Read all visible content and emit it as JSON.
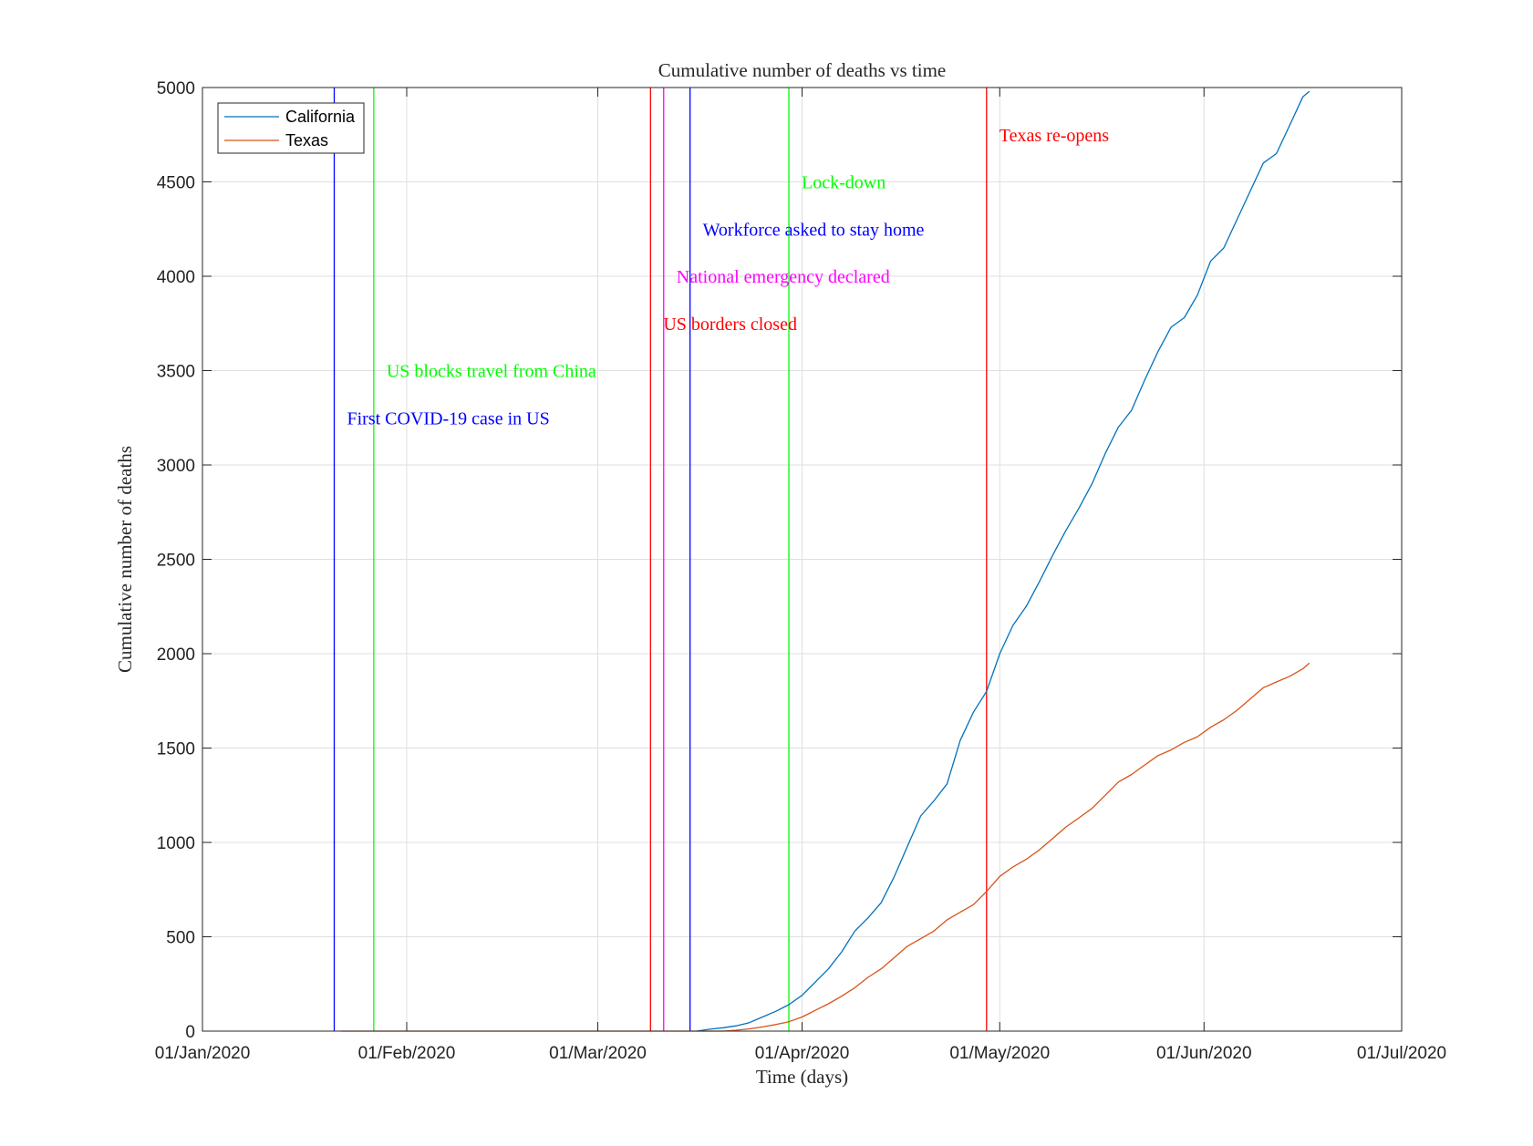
{
  "chart_data": {
    "type": "line",
    "title": "Cumulative number of deaths vs time",
    "xlabel": "Time (days)",
    "ylabel": "Cumulative number of deaths",
    "xlim": [
      "2020-01-01",
      "2020-07-01"
    ],
    "ylim": [
      0,
      5000
    ],
    "x_ticks": [
      "01/Jan/2020",
      "01/Feb/2020",
      "01/Mar/2020",
      "01/Apr/2020",
      "01/May/2020",
      "01/Jun/2020",
      "01/Jul/2020"
    ],
    "x_tick_dates": [
      "2020-01-01",
      "2020-02-01",
      "2020-03-01",
      "2020-04-01",
      "2020-05-01",
      "2020-06-01",
      "2020-07-01"
    ],
    "y_ticks": [
      0,
      500,
      1000,
      1500,
      2000,
      2500,
      3000,
      3500,
      4000,
      4500,
      5000
    ],
    "grid": true,
    "legend_position": "top-left",
    "series": [
      {
        "name": "California",
        "color": "#0072BD",
        "points": [
          [
            "2020-03-16",
            0
          ],
          [
            "2020-03-18",
            10
          ],
          [
            "2020-03-20",
            18
          ],
          [
            "2020-03-22",
            28
          ],
          [
            "2020-03-24",
            45
          ],
          [
            "2020-03-26",
            75
          ],
          [
            "2020-03-28",
            105
          ],
          [
            "2020-03-30",
            140
          ],
          [
            "2020-04-01",
            190
          ],
          [
            "2020-04-03",
            260
          ],
          [
            "2020-04-05",
            330
          ],
          [
            "2020-04-07",
            420
          ],
          [
            "2020-04-09",
            530
          ],
          [
            "2020-04-11",
            600
          ],
          [
            "2020-04-13",
            680
          ],
          [
            "2020-04-15",
            820
          ],
          [
            "2020-04-17",
            980
          ],
          [
            "2020-04-19",
            1140
          ],
          [
            "2020-04-21",
            1220
          ],
          [
            "2020-04-23",
            1310
          ],
          [
            "2020-04-25",
            1540
          ],
          [
            "2020-04-27",
            1690
          ],
          [
            "2020-04-29",
            1800
          ],
          [
            "2020-05-01",
            2000
          ],
          [
            "2020-05-03",
            2150
          ],
          [
            "2020-05-05",
            2250
          ],
          [
            "2020-05-07",
            2380
          ],
          [
            "2020-05-09",
            2520
          ],
          [
            "2020-05-11",
            2650
          ],
          [
            "2020-05-13",
            2770
          ],
          [
            "2020-05-15",
            2900
          ],
          [
            "2020-05-17",
            3060
          ],
          [
            "2020-05-19",
            3200
          ],
          [
            "2020-05-21",
            3290
          ],
          [
            "2020-05-23",
            3450
          ],
          [
            "2020-05-25",
            3600
          ],
          [
            "2020-05-27",
            3730
          ],
          [
            "2020-05-29",
            3780
          ],
          [
            "2020-05-31",
            3900
          ],
          [
            "2020-06-02",
            4080
          ],
          [
            "2020-06-04",
            4150
          ],
          [
            "2020-06-06",
            4300
          ],
          [
            "2020-06-08",
            4450
          ],
          [
            "2020-06-10",
            4600
          ],
          [
            "2020-06-12",
            4650
          ],
          [
            "2020-06-14",
            4800
          ],
          [
            "2020-06-16",
            4950
          ],
          [
            "2020-06-17",
            4980
          ]
        ]
      },
      {
        "name": "Texas",
        "color": "#D95319",
        "points": [
          [
            "2020-01-22",
            0
          ],
          [
            "2020-03-20",
            0
          ],
          [
            "2020-03-22",
            5
          ],
          [
            "2020-03-24",
            12
          ],
          [
            "2020-03-26",
            22
          ],
          [
            "2020-03-28",
            35
          ],
          [
            "2020-03-30",
            50
          ],
          [
            "2020-04-01",
            75
          ],
          [
            "2020-04-03",
            110
          ],
          [
            "2020-04-05",
            145
          ],
          [
            "2020-04-07",
            185
          ],
          [
            "2020-04-09",
            230
          ],
          [
            "2020-04-11",
            285
          ],
          [
            "2020-04-13",
            330
          ],
          [
            "2020-04-15",
            390
          ],
          [
            "2020-04-17",
            450
          ],
          [
            "2020-04-19",
            490
          ],
          [
            "2020-04-21",
            530
          ],
          [
            "2020-04-23",
            590
          ],
          [
            "2020-04-25",
            630
          ],
          [
            "2020-04-27",
            670
          ],
          [
            "2020-04-29",
            740
          ],
          [
            "2020-05-01",
            820
          ],
          [
            "2020-05-03",
            870
          ],
          [
            "2020-05-05",
            910
          ],
          [
            "2020-05-07",
            960
          ],
          [
            "2020-05-09",
            1020
          ],
          [
            "2020-05-11",
            1080
          ],
          [
            "2020-05-13",
            1130
          ],
          [
            "2020-05-15",
            1180
          ],
          [
            "2020-05-17",
            1250
          ],
          [
            "2020-05-19",
            1320
          ],
          [
            "2020-05-21",
            1360
          ],
          [
            "2020-05-23",
            1410
          ],
          [
            "2020-05-25",
            1460
          ],
          [
            "2020-05-27",
            1490
          ],
          [
            "2020-05-29",
            1530
          ],
          [
            "2020-05-31",
            1560
          ],
          [
            "2020-06-02",
            1610
          ],
          [
            "2020-06-04",
            1650
          ],
          [
            "2020-06-06",
            1700
          ],
          [
            "2020-06-08",
            1760
          ],
          [
            "2020-06-10",
            1820
          ],
          [
            "2020-06-12",
            1850
          ],
          [
            "2020-06-14",
            1880
          ],
          [
            "2020-06-16",
            1920
          ],
          [
            "2020-06-17",
            1950
          ]
        ]
      }
    ],
    "events": [
      {
        "date": "2020-01-21",
        "label": "First COVID-19 case in US",
        "color": "#0000FF",
        "label_y": 3250
      },
      {
        "date": "2020-01-27",
        "label": "US blocks travel from China",
        "color": "#00FF00",
        "label_y": 3500
      },
      {
        "date": "2020-03-09",
        "label": "US borders closed",
        "color": "#FF0000",
        "label_y": 3750
      },
      {
        "date": "2020-03-11",
        "label": "National emergency declared",
        "color": "#FF00FF",
        "label_y": 4000
      },
      {
        "date": "2020-03-15",
        "label": "Workforce asked to stay home",
        "color": "#0000FF",
        "label_y": 4250
      },
      {
        "date": "2020-03-30",
        "label": "Lock-down",
        "color": "#00FF00",
        "label_y": 4500
      },
      {
        "date": "2020-04-29",
        "label": "Texas re-opens",
        "color": "#FF0000",
        "label_y": 4750
      }
    ]
  }
}
